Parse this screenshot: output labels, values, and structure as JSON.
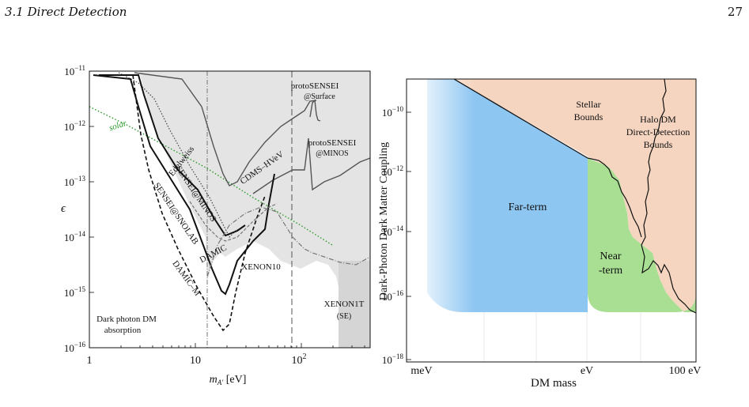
{
  "header": {
    "section": "3.1   Direct Detection",
    "page": "27"
  },
  "left_plot": {
    "chart_data": {
      "type": "line",
      "xlabel": "m_A' [eV]",
      "ylabel": "ϵ",
      "xscale": "log",
      "yscale": "log",
      "xlim": [
        1,
        350
      ],
      "ylim": [
        1e-16,
        1e-11
      ],
      "xticks": [
        "1",
        "10",
        "10²"
      ],
      "yticks": [
        "10⁻¹¹",
        "10⁻¹²",
        "10⁻¹³",
        "10⁻¹⁴",
        "10⁻¹⁵",
        "10⁻¹⁶"
      ],
      "annotations": [
        "protoSENSEI @Surface",
        "protoSENSEI @MINOS",
        "CDMS-HVeV",
        "Edelweiss",
        "SENSEI@MINOS",
        "SENSEI@SNOLAB",
        "DAMIC",
        "DAMIC-M",
        "XENON10",
        "XENON1T (SE)",
        "solar",
        "Dark photon DM absorption"
      ],
      "series": [
        {
          "name": "solar",
          "style": "green dotted",
          "x": [
            1,
            2,
            5,
            10,
            20,
            40
          ],
          "y": [
            2e-12,
            9e-13,
            3e-13,
            1.2e-13,
            5e-14,
            2e-14
          ]
        },
        {
          "name": "SENSEI@SNOLAB",
          "style": "black solid thick",
          "x": [
            1.1,
            2.5,
            3.3,
            5,
            10,
            17,
            20,
            27,
            35,
            50
          ],
          "y": [
            9e-12,
            7e-12,
            1e-12,
            2e-13,
            4e-14,
            1.2e-15,
            3e-15,
            2e-14,
            4e-14,
            1e-13
          ]
        },
        {
          "name": "SENSEI@MINOS",
          "style": "black solid thick",
          "x": [
            1.2,
            3,
            3.5,
            5,
            10,
            15,
            20,
            25
          ],
          "y": [
            9e-12,
            9e-12,
            2e-12,
            4e-13,
            7e-14,
            1.8e-14,
            2.5e-14,
            5e-14
          ]
        },
        {
          "name": "DAMIC-M",
          "style": "black dashed",
          "x": [
            2.3,
            3.5,
            5,
            10,
            17,
            20,
            25,
            32
          ],
          "y": [
            9e-12,
            1e-13,
            2e-14,
            3e-15,
            2e-16,
            1e-15,
            3e-14,
            6e-14
          ]
        },
        {
          "name": "CDMS-HVeV",
          "style": "gray solid",
          "x": [
            2.5,
            8,
            13,
            17,
            22,
            30,
            60,
            100
          ],
          "y": [
            9e-12,
            9e-12,
            3e-12,
            2e-13,
            3e-13,
            6e-13,
            2e-12,
            3e-12
          ]
        },
        {
          "name": "protoSENSEI @Surface",
          "style": "gray solid",
          "x": [
            70,
            100,
            120,
            140,
            200
          ],
          "y": [
            2e-12,
            3e-12,
            3e-12,
            8e-13,
            8e-13
          ]
        },
        {
          "name": "protoSENSEI @MINOS",
          "style": "gray solid",
          "x": [
            32,
            50,
            75,
            110,
            160,
            300
          ],
          "y": [
            2e-13,
            1.5e-13,
            1.5e-13,
            2.5e-13,
            2e-13,
            5e-13
          ]
        },
        {
          "name": "XENON10",
          "style": "gray dash-dot",
          "x": [
            12,
            16,
            20,
            30,
            50,
            80,
            120,
            200,
            350
          ],
          "y": [
            4e-15,
            1.5e-14,
            2e-14,
            3e-14,
            4e-14,
            6e-15,
            8e-15,
            3e-15,
            5e-15
          ]
        }
      ]
    }
  },
  "right_plot": {
    "chart_data": {
      "type": "area",
      "xlabel": "DM mass",
      "ylabel": "Dark-Photon Dark Matter Coupling",
      "xscale": "log",
      "yscale": "log",
      "xticks": [
        "meV",
        "eV",
        "100 eV"
      ],
      "yticks": [
        "10⁻¹⁰",
        "10⁻¹²",
        "10⁻¹⁴",
        "10⁻¹⁶",
        "10⁻¹⁸"
      ],
      "regions": [
        {
          "name": "Stellar Bounds",
          "color": "#f5d5c0"
        },
        {
          "name": "Halo DM Direct-Detection Bounds",
          "color": "#f5d5c0"
        },
        {
          "name": "Far-term",
          "color": "#8ec6f2"
        },
        {
          "name": "Near -term",
          "color": "#a9df93"
        }
      ]
    }
  },
  "labels": {
    "left_xlabel_main": "m",
    "left_xlabel_sub": "A'",
    "left_xlabel_unit": " [eV]",
    "left_ylabel": "ϵ",
    "lx_1": "1",
    "lx_10": "10",
    "lx_100": "10",
    "lx_100_exp": "2",
    "ly_11": "10",
    "ly_11e": "−11",
    "ly_12": "10",
    "ly_12e": "−12",
    "ly_13": "10",
    "ly_13e": "−13",
    "ly_14": "10",
    "ly_14e": "−14",
    "ly_15": "10",
    "ly_15e": "−15",
    "ly_16": "10",
    "ly_16e": "−16",
    "proto_surface_1": "protoSENSEI",
    "proto_surface_2": "@Surface",
    "proto_minos_1": "protoSENSEI",
    "proto_minos_2": "@MINOS",
    "cdms": "CDMS–HVeV",
    "edelweiss": "Edelweiss",
    "sensei_minos": "SENSEI@MINOS",
    "sensei_snolab": "SENSEI@SNOLAB",
    "damic": "DAMIC",
    "damic_m": "DAMIC–M",
    "xenon10": "XENON10",
    "xenon1t_1": "XENON1T",
    "xenon1t_2": "(SE)",
    "solar": "solar",
    "absorption_1": "Dark photon DM",
    "absorption_2": "absorption",
    "right_xlabel": "DM mass",
    "right_ylabel": "Dark-Photon Dark Matter Coupling",
    "rx_mev": "meV",
    "rx_ev": "eV",
    "rx_100ev": "100 eV",
    "ry_10": "10",
    "ry_10e": "−10",
    "ry_12": "10",
    "ry_12e": "−12",
    "ry_14": "10",
    "ry_14e": "−14",
    "ry_16": "10",
    "ry_16e": "−16",
    "ry_18": "10",
    "ry_18e": "−18",
    "stellar_1": "Stellar",
    "stellar_2": "Bounds",
    "halo_1": "Halo DM",
    "halo_2": "Direct-Detection",
    "halo_3": "Bounds",
    "far_term": "Far-term",
    "near_1": "Near",
    "near_2": "-term"
  }
}
